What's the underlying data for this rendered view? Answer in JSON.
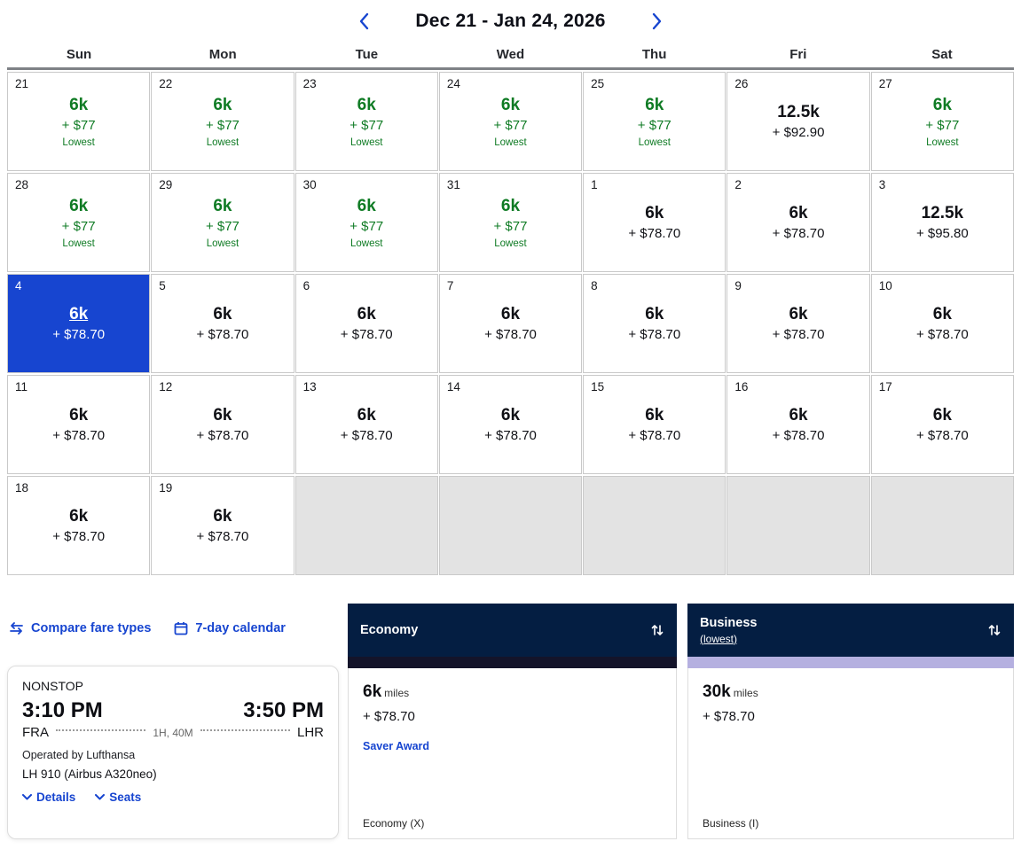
{
  "header": {
    "title": "Dec 21 - Jan 24, 2026"
  },
  "calendar": {
    "day_headers": [
      "Sun",
      "Mon",
      "Tue",
      "Wed",
      "Thu",
      "Fri",
      "Sat"
    ],
    "cells": [
      {
        "day": "21",
        "points": "6k",
        "price": "+ $77",
        "badge": "Lowest",
        "variant": "lowest"
      },
      {
        "day": "22",
        "points": "6k",
        "price": "+ $77",
        "badge": "Lowest",
        "variant": "lowest"
      },
      {
        "day": "23",
        "points": "6k",
        "price": "+ $77",
        "badge": "Lowest",
        "variant": "lowest"
      },
      {
        "day": "24",
        "points": "6k",
        "price": "+ $77",
        "badge": "Lowest",
        "variant": "lowest"
      },
      {
        "day": "25",
        "points": "6k",
        "price": "+ $77",
        "badge": "Lowest",
        "variant": "lowest"
      },
      {
        "day": "26",
        "points": "12.5k",
        "price": "+ $92.90",
        "variant": "plain"
      },
      {
        "day": "27",
        "points": "6k",
        "price": "+ $77",
        "badge": "Lowest",
        "variant": "lowest"
      },
      {
        "day": "28",
        "points": "6k",
        "price": "+ $77",
        "badge": "Lowest",
        "variant": "lowest"
      },
      {
        "day": "29",
        "points": "6k",
        "price": "+ $77",
        "badge": "Lowest",
        "variant": "lowest"
      },
      {
        "day": "30",
        "points": "6k",
        "price": "+ $77",
        "badge": "Lowest",
        "variant": "lowest"
      },
      {
        "day": "31",
        "points": "6k",
        "price": "+ $77",
        "badge": "Lowest",
        "variant": "lowest"
      },
      {
        "day": "1",
        "points": "6k",
        "price": "+ $78.70",
        "variant": "plain"
      },
      {
        "day": "2",
        "points": "6k",
        "price": "+ $78.70",
        "variant": "plain"
      },
      {
        "day": "3",
        "points": "12.5k",
        "price": "+ $95.80",
        "variant": "plain"
      },
      {
        "day": "4",
        "points": "6k",
        "price": "+ $78.70",
        "variant": "selected"
      },
      {
        "day": "5",
        "points": "6k",
        "price": "+ $78.70",
        "variant": "plain"
      },
      {
        "day": "6",
        "points": "6k",
        "price": "+ $78.70",
        "variant": "plain"
      },
      {
        "day": "7",
        "points": "6k",
        "price": "+ $78.70",
        "variant": "plain"
      },
      {
        "day": "8",
        "points": "6k",
        "price": "+ $78.70",
        "variant": "plain"
      },
      {
        "day": "9",
        "points": "6k",
        "price": "+ $78.70",
        "variant": "plain"
      },
      {
        "day": "10",
        "points": "6k",
        "price": "+ $78.70",
        "variant": "plain"
      },
      {
        "day": "11",
        "points": "6k",
        "price": "+ $78.70",
        "variant": "plain"
      },
      {
        "day": "12",
        "points": "6k",
        "price": "+ $78.70",
        "variant": "plain"
      },
      {
        "day": "13",
        "points": "6k",
        "price": "+ $78.70",
        "variant": "plain"
      },
      {
        "day": "14",
        "points": "6k",
        "price": "+ $78.70",
        "variant": "plain"
      },
      {
        "day": "15",
        "points": "6k",
        "price": "+ $78.70",
        "variant": "plain"
      },
      {
        "day": "16",
        "points": "6k",
        "price": "+ $78.70",
        "variant": "plain"
      },
      {
        "day": "17",
        "points": "6k",
        "price": "+ $78.70",
        "variant": "plain"
      },
      {
        "day": "18",
        "points": "6k",
        "price": "+ $78.70",
        "variant": "plain"
      },
      {
        "day": "19",
        "points": "6k",
        "price": "+ $78.70",
        "variant": "plain"
      },
      {
        "variant": "empty"
      },
      {
        "variant": "empty"
      },
      {
        "variant": "empty"
      },
      {
        "variant": "empty"
      },
      {
        "variant": "empty"
      }
    ]
  },
  "toolbar": {
    "compare_label": "Compare fare types",
    "calendar_label": "7-day calendar"
  },
  "flight": {
    "stops": "NONSTOP",
    "depart_time": "3:10 PM",
    "arrive_time": "3:50 PM",
    "origin": "FRA",
    "destination": "LHR",
    "duration": "1H, 40M",
    "operated_by": "Operated by Lufthansa",
    "flight_number": "LH 910 (Airbus A320neo)",
    "details_label": "Details",
    "seats_label": "Seats"
  },
  "fares": [
    {
      "name": "Economy",
      "miles": "6k",
      "miles_suffix": "miles",
      "price": "+ $78.70",
      "award": "Saver Award",
      "footer": "Economy (X)",
      "indicator_color": "#14142a"
    },
    {
      "name": "Business",
      "sub": "(lowest)",
      "miles": "30k",
      "miles_suffix": "miles",
      "price": "+ $78.70",
      "footer": "Business (I)",
      "indicator_color": "#b5b0e0"
    }
  ],
  "colors": {
    "accent_blue": "#1745d0",
    "lowest_green": "#0f7b24",
    "navy": "#041e42"
  }
}
